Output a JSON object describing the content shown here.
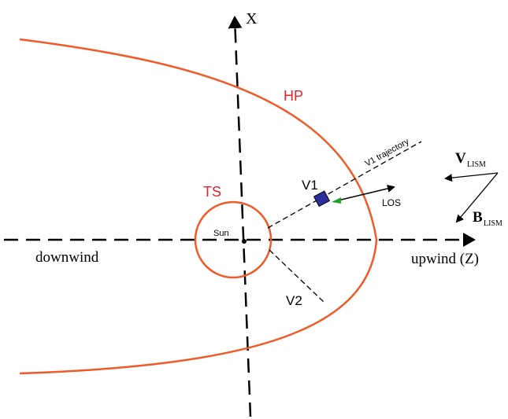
{
  "labels": {
    "x_axis": "X",
    "hp": "HP",
    "ts": "TS",
    "v1": "V1",
    "v1_trajectory": "V1 trajectory",
    "los": "LOS",
    "sun": "Sun",
    "downwind": "downwind",
    "upwind": "upwind (Z)",
    "v2": "V2",
    "v_lism": {
      "main": "V",
      "sub": "LISM"
    },
    "b_lism": {
      "main": "B",
      "sub": "LISM"
    }
  }
}
